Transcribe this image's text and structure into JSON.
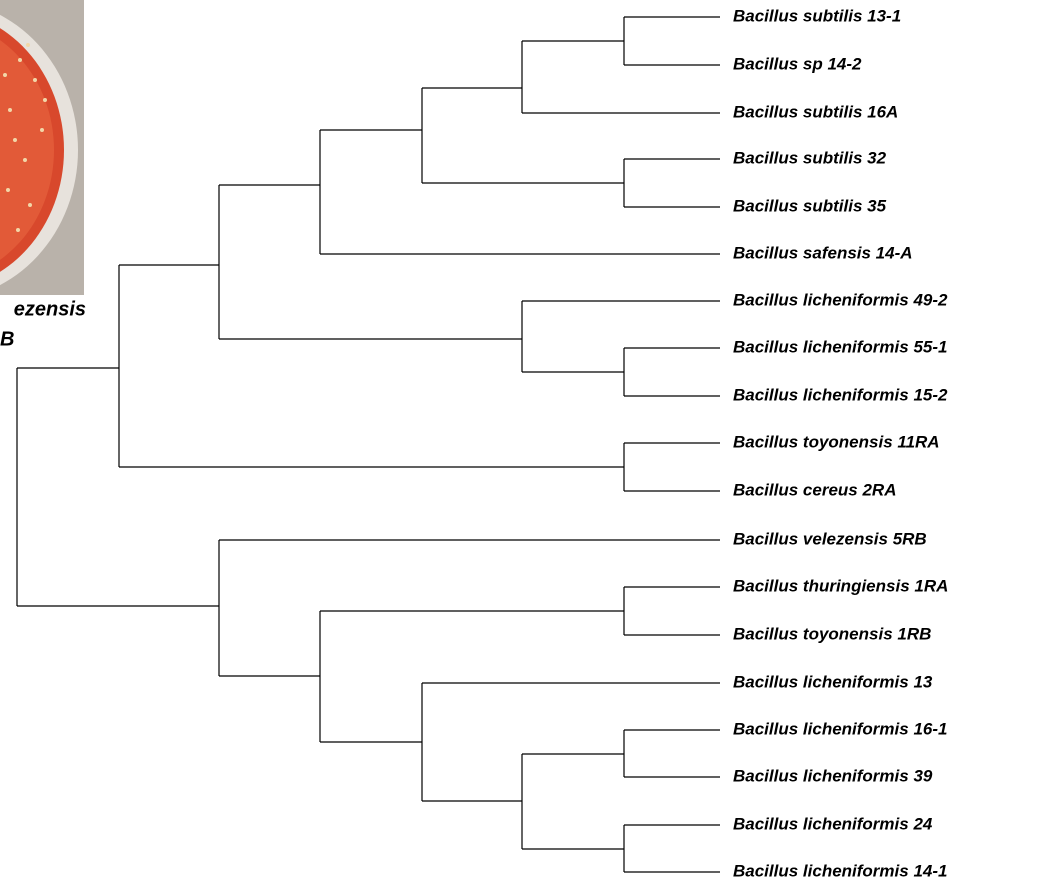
{
  "photo_caption": {
    "line1": "ezensis",
    "line2": "B"
  },
  "leaves": [
    "Bacillus subtilis 13-1",
    "Bacillus sp 14-2",
    "Bacillus subtilis 16A",
    "Bacillus subtilis 32",
    "Bacillus subtilis 35",
    "Bacillus safensis 14-A",
    "Bacillus licheniformis 49-2",
    "Bacillus licheniformis 55-1",
    "Bacillus licheniformis 15-2",
    "Bacillus toyonensis 11RA",
    "Bacillus cereus 2RA",
    "Bacillus velezensis 5RB",
    "Bacillus thuringiensis 1RA",
    "Bacillus toyonensis 1RB",
    "Bacillus licheniformis 13",
    "Bacillus licheniformis 16-1",
    "Bacillus licheniformis 39",
    "Bacillus licheniformis 24",
    "Bacillus licheniformis 14-1"
  ]
}
